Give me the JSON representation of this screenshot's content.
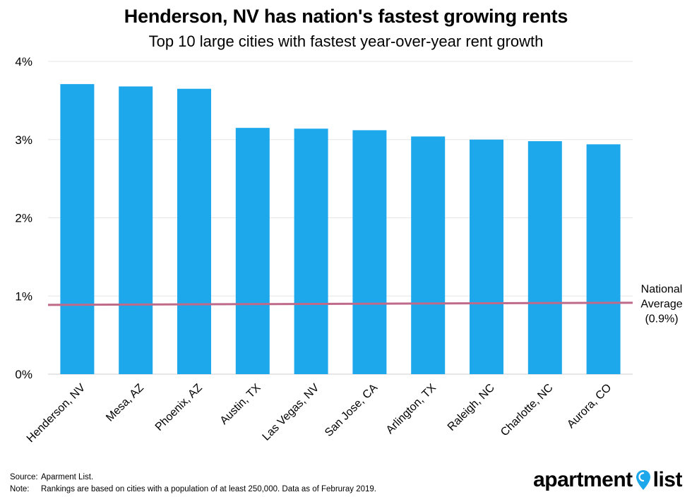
{
  "chart_data": {
    "type": "bar",
    "title": "Henderson, NV has nation's fastest growing rents",
    "subtitle": "Top 10 large cities with fastest year-over-year rent growth",
    "categories": [
      "Henderson, NV",
      "Mesa, AZ",
      "Phoenix, AZ",
      "Austin, TX",
      "Las Vegas, NV",
      "San Jose, CA",
      "Arlington, TX",
      "Raleigh, NC",
      "Charlotte, NC",
      "Aurora, CO"
    ],
    "values": [
      3.71,
      3.68,
      3.65,
      3.15,
      3.14,
      3.12,
      3.04,
      3.0,
      2.98,
      2.94
    ],
    "ylim": [
      0,
      4
    ],
    "yticks": [
      0,
      1,
      2,
      3,
      4
    ],
    "ytick_labels": [
      "0%",
      "1%",
      "2%",
      "3%",
      "4%"
    ],
    "grid": true,
    "bar_color": "#1ea8ec",
    "reference_line": {
      "value": 0.9,
      "color": "#c06a8a",
      "label_lines": [
        "National",
        "Average",
        "(0.9%)"
      ]
    }
  },
  "footer": {
    "source_key": "Source:",
    "source_text": "Aparment List.",
    "note_key": "Note:",
    "note_text": "Rankings are based on cities with a population of at least 250,000. Data as of Februray 2019."
  },
  "logo": {
    "word1": "apartment",
    "word2": "list",
    "pin_icon": "location-pin-icon",
    "pin_color": "#1ea8ec"
  }
}
